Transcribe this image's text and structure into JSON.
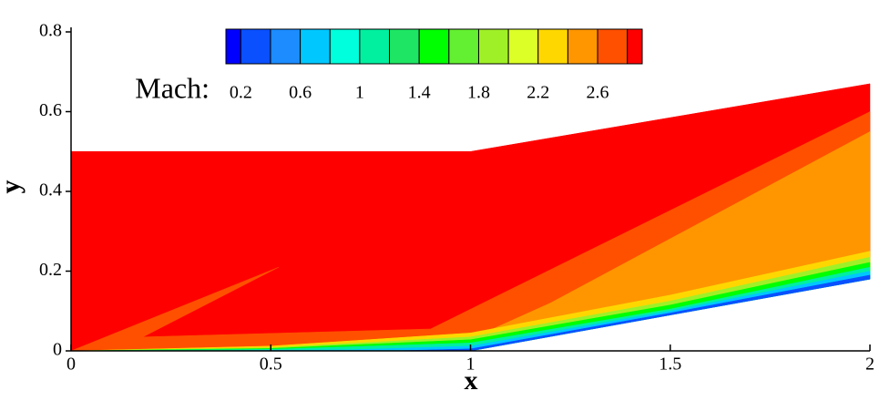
{
  "chart_data": {
    "type": "contour",
    "xlabel": "x",
    "ylabel": "y",
    "xlim": [
      0,
      2
    ],
    "ylim": [
      0,
      0.8
    ],
    "xticks": [
      0,
      0.5,
      1,
      1.5,
      2
    ],
    "yticks": [
      0,
      0.2,
      0.4,
      0.6,
      0.8
    ],
    "colorbar": {
      "label": "Mach:",
      "clim": [
        0.1,
        2.9
      ],
      "levels": [
        0.2,
        0.4,
        0.6,
        0.8,
        1,
        1.2,
        1.4,
        1.6,
        1.8,
        2,
        2.2,
        2.4,
        2.6,
        2.8
      ],
      "ticks": [
        0.2,
        0.6,
        1,
        1.4,
        1.8,
        2.2,
        2.6
      ],
      "colors": [
        "#0000ff",
        "#0a50ff",
        "#1c8cff",
        "#00c8ff",
        "#00ffdc",
        "#00f0a0",
        "#1ee664",
        "#00ff00",
        "#64f032",
        "#a0f028",
        "#dcff28",
        "#ffd700",
        "#ff9600",
        "#ff5000",
        "#ff0000"
      ]
    },
    "regions": [
      {
        "level": 14,
        "points": [
          [
            0,
            0
          ],
          [
            0,
            0.5
          ],
          [
            1,
            0.5
          ],
          [
            2,
            0.67
          ],
          [
            2,
            0.18
          ],
          [
            1,
            0
          ]
        ]
      },
      {
        "level": 13,
        "points": [
          [
            0,
            0
          ],
          [
            0.52,
            0.21
          ],
          [
            0.18,
            0.035
          ],
          [
            0.9,
            0.055
          ],
          [
            2,
            0.6
          ],
          [
            2,
            0.2
          ],
          [
            1,
            0.02
          ],
          [
            0.5,
            0.01
          ]
        ]
      },
      {
        "level": 12,
        "points": [
          [
            1.2,
            0.12
          ],
          [
            2,
            0.55
          ],
          [
            2,
            0.22
          ],
          [
            1,
            0.03
          ]
        ]
      },
      {
        "level": 11,
        "points": [
          [
            0,
            0
          ],
          [
            0.5,
            0.012
          ],
          [
            1,
            0.045
          ],
          [
            1.5,
            0.14
          ],
          [
            2,
            0.25
          ],
          [
            2,
            0.18
          ],
          [
            1.5,
            0.09
          ],
          [
            1,
            0
          ]
        ]
      },
      {
        "level": 9,
        "points": [
          [
            0,
            0
          ],
          [
            0.5,
            0.008
          ],
          [
            1,
            0.035
          ],
          [
            1.5,
            0.125
          ],
          [
            2,
            0.235
          ],
          [
            2,
            0.18
          ],
          [
            1.5,
            0.09
          ],
          [
            1,
            0
          ]
        ]
      },
      {
        "level": 7,
        "points": [
          [
            0,
            0
          ],
          [
            0.5,
            0.006
          ],
          [
            1,
            0.028
          ],
          [
            1.5,
            0.115
          ],
          [
            2,
            0.222
          ],
          [
            2,
            0.18
          ],
          [
            1.5,
            0.09
          ],
          [
            1,
            0
          ]
        ]
      },
      {
        "level": 5,
        "points": [
          [
            0,
            0
          ],
          [
            0.5,
            0.004
          ],
          [
            1,
            0.02
          ],
          [
            1.5,
            0.105
          ],
          [
            2,
            0.21
          ],
          [
            2,
            0.18
          ],
          [
            1.5,
            0.09
          ],
          [
            1,
            0
          ]
        ]
      },
      {
        "level": 3,
        "points": [
          [
            0.3,
            0
          ],
          [
            0.7,
            0.003
          ],
          [
            1,
            0.012
          ],
          [
            1.5,
            0.1
          ],
          [
            2,
            0.2
          ],
          [
            2,
            0.18
          ],
          [
            1.5,
            0.09
          ],
          [
            1,
            0
          ]
        ]
      },
      {
        "level": 1,
        "points": [
          [
            0.8,
            0
          ],
          [
            1,
            0.005
          ],
          [
            1.5,
            0.095
          ],
          [
            2,
            0.19
          ],
          [
            2,
            0.18
          ],
          [
            1.5,
            0.09
          ],
          [
            1,
            0
          ]
        ]
      }
    ]
  }
}
